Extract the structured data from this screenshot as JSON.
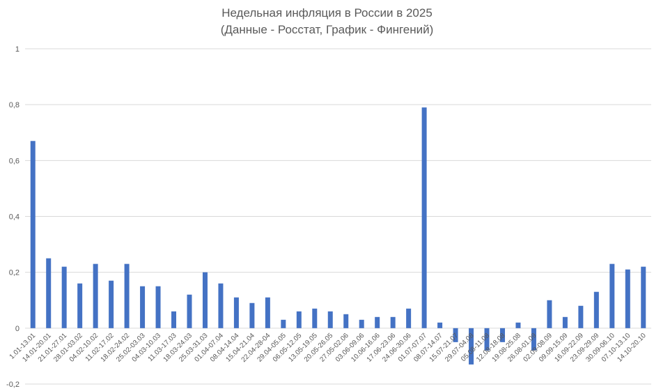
{
  "chart_data": {
    "type": "bar",
    "title": "Недельная инфляция в России в 2025",
    "subtitle": "(Данные - Росстат, График - Фингений)",
    "xlabel": "",
    "ylabel": "",
    "ylim": [
      -0.2,
      1
    ],
    "yticks": [
      -0.2,
      0,
      0.2,
      0.4,
      0.6,
      0.8,
      1
    ],
    "ytick_labels": [
      "-0,2",
      "0",
      "0,2",
      "0,4",
      "0,6",
      "0,8",
      "1"
    ],
    "grid": true,
    "legend": "none",
    "bar_color": "#4472c4",
    "categories": [
      "1.01-13.01",
      "14.01-20.01",
      "21.01-27.01",
      "28.01-03.02",
      "04.02-10.02",
      "11.02-17.02",
      "18.02-24.02",
      "25.02-03.03",
      "04.03-10.03",
      "11.03-17.03",
      "18.03-24.03",
      "25.03-31.03",
      "01.04-07.04",
      "08.04-14.04",
      "15.04-21.04",
      "22.04-28-04",
      "29.04-05.05",
      "06.05-12.05",
      "13.05-19.05",
      "20.05-26.05",
      "27.05-02.06",
      "03.06-09.06",
      "10.06-16.06",
      "17.06-23.06",
      "24.06-30.06",
      "01.07-07.07",
      "08.07-14.07",
      "15.07-21.07",
      "29.07-04.08",
      "05.08-11.08",
      "12.08-18.08",
      "19.08-25.08",
      "26.08-01.09",
      "02.09-08.09",
      "09.09-15.09",
      "16.09-22.09",
      "23.09-29.09",
      "30.09-06.10",
      "07.10-13.10",
      "14.10-20.10"
    ],
    "values": [
      0.67,
      0.25,
      0.22,
      0.16,
      0.23,
      0.17,
      0.23,
      0.15,
      0.15,
      0.06,
      0.12,
      0.2,
      0.16,
      0.11,
      0.09,
      0.11,
      0.03,
      0.06,
      0.07,
      0.06,
      0.05,
      0.03,
      0.04,
      0.04,
      0.07,
      0.79,
      0.02,
      -0.05,
      -0.13,
      -0.08,
      -0.05,
      0.02,
      -0.08,
      0.1,
      0.04,
      0.08,
      0.13,
      0.23,
      0.21,
      0.22
    ]
  }
}
